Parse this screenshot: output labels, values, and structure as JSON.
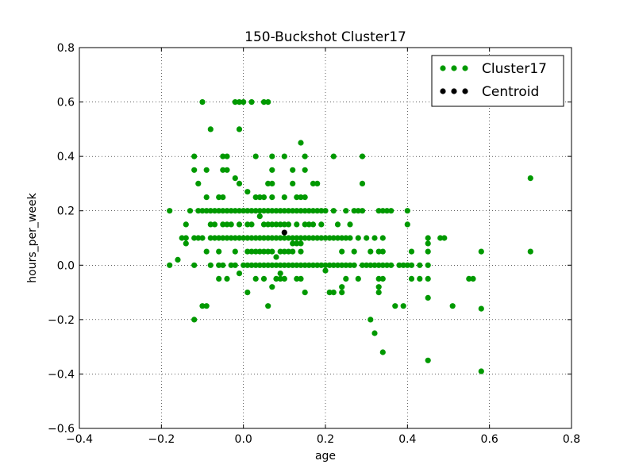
{
  "chart_data": {
    "type": "scatter",
    "title": "150-Buckshot Cluster17",
    "xlabel": "age",
    "ylabel": "hours_per_week",
    "xlim": [
      -0.4,
      0.8
    ],
    "ylim": [
      -0.6,
      0.8
    ],
    "xticks": [
      -0.4,
      -0.2,
      0.0,
      0.2,
      0.4,
      0.6,
      0.8
    ],
    "xtick_labels": [
      "−0.4",
      "−0.2",
      "0.0",
      "0.2",
      "0.4",
      "0.6",
      "0.8"
    ],
    "yticks": [
      -0.6,
      -0.4,
      -0.2,
      0.0,
      0.2,
      0.4,
      0.6,
      0.8
    ],
    "ytick_labels": [
      "−0.6",
      "−0.4",
      "−0.2",
      "0.0",
      "0.2",
      "0.4",
      "0.6",
      "0.8"
    ],
    "grid": true,
    "legend_position": "top-right",
    "series": [
      {
        "name": "Cluster17",
        "color": "#009900",
        "points": [
          [
            -0.18,
            0.2
          ],
          [
            -0.18,
            0.0
          ],
          [
            -0.16,
            0.02
          ],
          [
            -0.15,
            0.1
          ],
          [
            -0.14,
            0.1
          ],
          [
            -0.14,
            0.15
          ],
          [
            -0.14,
            0.08
          ],
          [
            -0.13,
            0.2
          ],
          [
            -0.12,
            0.0
          ],
          [
            -0.12,
            0.1
          ],
          [
            -0.12,
            0.35
          ],
          [
            -0.12,
            0.4
          ],
          [
            -0.12,
            -0.2
          ],
          [
            -0.11,
            0.2
          ],
          [
            -0.11,
            0.1
          ],
          [
            -0.11,
            0.3
          ],
          [
            -0.1,
            -0.15
          ],
          [
            -0.1,
            0.6
          ],
          [
            -0.1,
            0.2
          ],
          [
            -0.1,
            0.1
          ],
          [
            -0.09,
            -0.15
          ],
          [
            -0.09,
            0.05
          ],
          [
            -0.09,
            0.2
          ],
          [
            -0.09,
            0.25
          ],
          [
            -0.09,
            0.35
          ],
          [
            -0.08,
            0.1
          ],
          [
            -0.08,
            0.0
          ],
          [
            -0.08,
            0.15
          ],
          [
            -0.08,
            0.2
          ],
          [
            -0.08,
            0.5
          ],
          [
            -0.07,
            0.1
          ],
          [
            -0.07,
            0.2
          ],
          [
            -0.07,
            0.15
          ],
          [
            -0.06,
            0.25
          ],
          [
            -0.06,
            0.05
          ],
          [
            -0.06,
            -0.05
          ],
          [
            -0.06,
            0.0
          ],
          [
            -0.06,
            0.1
          ],
          [
            -0.06,
            0.2
          ],
          [
            -0.05,
            0.15
          ],
          [
            -0.05,
            0.25
          ],
          [
            -0.05,
            0.35
          ],
          [
            -0.05,
            0.4
          ],
          [
            -0.05,
            0.1
          ],
          [
            -0.05,
            0.2
          ],
          [
            -0.05,
            0.0
          ],
          [
            -0.04,
            0.4
          ],
          [
            -0.04,
            0.35
          ],
          [
            -0.04,
            0.2
          ],
          [
            -0.04,
            0.1
          ],
          [
            -0.04,
            -0.05
          ],
          [
            -0.04,
            0.15
          ],
          [
            -0.03,
            0.1
          ],
          [
            -0.03,
            0.2
          ],
          [
            -0.03,
            0.0
          ],
          [
            -0.03,
            0.15
          ],
          [
            -0.02,
            0.32
          ],
          [
            -0.02,
            0.6
          ],
          [
            -0.02,
            0.2
          ],
          [
            -0.02,
            0.1
          ],
          [
            -0.02,
            0.05
          ],
          [
            -0.02,
            0.0
          ],
          [
            -0.01,
            0.6
          ],
          [
            -0.01,
            0.5
          ],
          [
            -0.01,
            0.3
          ],
          [
            -0.01,
            0.2
          ],
          [
            -0.01,
            0.1
          ],
          [
            -0.01,
            0.15
          ],
          [
            -0.01,
            -0.03
          ],
          [
            0.0,
            0.6
          ],
          [
            0.0,
            0.2
          ],
          [
            0.0,
            0.1
          ],
          [
            0.0,
            0.0
          ],
          [
            0.01,
            0.27
          ],
          [
            0.01,
            0.2
          ],
          [
            0.01,
            0.15
          ],
          [
            0.01,
            0.1
          ],
          [
            0.01,
            0.05
          ],
          [
            0.01,
            0.0
          ],
          [
            0.01,
            -0.1
          ],
          [
            0.02,
            0.2
          ],
          [
            0.02,
            0.15
          ],
          [
            0.02,
            0.1
          ],
          [
            0.02,
            0.05
          ],
          [
            0.02,
            0.0
          ],
          [
            0.02,
            0.6
          ],
          [
            0.03,
            0.2
          ],
          [
            0.03,
            0.1
          ],
          [
            0.03,
            0.05
          ],
          [
            0.03,
            0.0
          ],
          [
            0.03,
            0.25
          ],
          [
            0.03,
            -0.05
          ],
          [
            0.03,
            0.4
          ],
          [
            0.04,
            0.2
          ],
          [
            0.04,
            0.1
          ],
          [
            0.04,
            0.05
          ],
          [
            0.04,
            0.0
          ],
          [
            0.04,
            0.18
          ],
          [
            0.04,
            0.25
          ],
          [
            0.05,
            0.6
          ],
          [
            0.05,
            0.2
          ],
          [
            0.05,
            0.15
          ],
          [
            0.05,
            0.1
          ],
          [
            0.05,
            0.05
          ],
          [
            0.05,
            0.0
          ],
          [
            0.05,
            -0.05
          ],
          [
            0.05,
            0.25
          ],
          [
            0.06,
            0.6
          ],
          [
            0.06,
            0.3
          ],
          [
            0.06,
            0.2
          ],
          [
            0.06,
            0.1
          ],
          [
            0.06,
            0.05
          ],
          [
            0.06,
            0.0
          ],
          [
            0.06,
            -0.15
          ],
          [
            0.06,
            0.15
          ],
          [
            0.07,
            0.4
          ],
          [
            0.07,
            0.3
          ],
          [
            0.07,
            0.25
          ],
          [
            0.07,
            0.2
          ],
          [
            0.07,
            0.15
          ],
          [
            0.07,
            0.1
          ],
          [
            0.07,
            0.05
          ],
          [
            0.07,
            0.0
          ],
          [
            0.07,
            -0.08
          ],
          [
            0.07,
            0.35
          ],
          [
            0.08,
            0.2
          ],
          [
            0.08,
            0.1
          ],
          [
            0.08,
            0.15
          ],
          [
            0.08,
            0.0
          ],
          [
            0.08,
            -0.05
          ],
          [
            0.08,
            0.03
          ],
          [
            0.09,
            0.2
          ],
          [
            0.09,
            0.15
          ],
          [
            0.09,
            0.1
          ],
          [
            0.09,
            0.0
          ],
          [
            0.09,
            -0.05
          ],
          [
            0.09,
            -0.03
          ],
          [
            0.09,
            0.05
          ],
          [
            0.1,
            0.4
          ],
          [
            0.1,
            0.2
          ],
          [
            0.1,
            0.15
          ],
          [
            0.1,
            0.1
          ],
          [
            0.1,
            0.05
          ],
          [
            0.1,
            0.0
          ],
          [
            0.1,
            0.25
          ],
          [
            0.1,
            -0.05
          ],
          [
            0.11,
            0.2
          ],
          [
            0.11,
            0.1
          ],
          [
            0.11,
            0.05
          ],
          [
            0.11,
            0.0
          ],
          [
            0.11,
            0.15
          ],
          [
            0.12,
            0.2
          ],
          [
            0.12,
            0.1
          ],
          [
            0.12,
            0.08
          ],
          [
            0.12,
            0.05
          ],
          [
            0.12,
            0.0
          ],
          [
            0.12,
            0.35
          ],
          [
            0.12,
            0.3
          ],
          [
            0.13,
            0.2
          ],
          [
            0.13,
            0.15
          ],
          [
            0.13,
            0.1
          ],
          [
            0.13,
            0.08
          ],
          [
            0.13,
            0.0
          ],
          [
            0.13,
            -0.05
          ],
          [
            0.13,
            0.25
          ],
          [
            0.14,
            0.45
          ],
          [
            0.14,
            0.2
          ],
          [
            0.14,
            0.1
          ],
          [
            0.14,
            0.08
          ],
          [
            0.14,
            0.05
          ],
          [
            0.14,
            0.0
          ],
          [
            0.14,
            -0.05
          ],
          [
            0.14,
            0.25
          ],
          [
            0.15,
            0.4
          ],
          [
            0.15,
            0.35
          ],
          [
            0.15,
            0.2
          ],
          [
            0.15,
            0.1
          ],
          [
            0.15,
            0.0
          ],
          [
            0.15,
            -0.1
          ],
          [
            0.15,
            0.25
          ],
          [
            0.15,
            0.15
          ],
          [
            0.16,
            0.2
          ],
          [
            0.16,
            0.1
          ],
          [
            0.16,
            0.0
          ],
          [
            0.16,
            0.15
          ],
          [
            0.17,
            0.3
          ],
          [
            0.17,
            0.2
          ],
          [
            0.17,
            0.1
          ],
          [
            0.17,
            0.0
          ],
          [
            0.17,
            0.15
          ],
          [
            0.18,
            0.3
          ],
          [
            0.18,
            0.2
          ],
          [
            0.18,
            0.1
          ],
          [
            0.18,
            0.0
          ],
          [
            0.19,
            0.2
          ],
          [
            0.19,
            0.1
          ],
          [
            0.19,
            0.0
          ],
          [
            0.19,
            0.15
          ],
          [
            0.2,
            0.2
          ],
          [
            0.2,
            0.1
          ],
          [
            0.2,
            0.0
          ],
          [
            0.2,
            -0.02
          ],
          [
            0.21,
            0.1
          ],
          [
            0.21,
            0.0
          ],
          [
            0.21,
            -0.1
          ],
          [
            0.22,
            0.4
          ],
          [
            0.22,
            0.2
          ],
          [
            0.22,
            0.1
          ],
          [
            0.22,
            0.0
          ],
          [
            0.22,
            -0.1
          ],
          [
            0.23,
            0.15
          ],
          [
            0.23,
            0.0
          ],
          [
            0.23,
            0.1
          ],
          [
            0.24,
            0.1
          ],
          [
            0.24,
            0.05
          ],
          [
            0.24,
            0.0
          ],
          [
            0.24,
            -0.1
          ],
          [
            0.24,
            -0.08
          ],
          [
            0.25,
            0.2
          ],
          [
            0.25,
            0.1
          ],
          [
            0.25,
            0.0
          ],
          [
            0.25,
            -0.05
          ],
          [
            0.26,
            0.15
          ],
          [
            0.26,
            0.1
          ],
          [
            0.26,
            0.0
          ],
          [
            0.27,
            0.2
          ],
          [
            0.27,
            0.05
          ],
          [
            0.27,
            0.0
          ],
          [
            0.28,
            0.2
          ],
          [
            0.28,
            0.1
          ],
          [
            0.28,
            -0.05
          ],
          [
            0.29,
            0.4
          ],
          [
            0.29,
            0.3
          ],
          [
            0.29,
            0.2
          ],
          [
            0.29,
            0.0
          ],
          [
            0.3,
            0.1
          ],
          [
            0.3,
            0.0
          ],
          [
            0.31,
            0.0
          ],
          [
            0.31,
            0.05
          ],
          [
            0.31,
            -0.2
          ],
          [
            0.32,
            0.1
          ],
          [
            0.32,
            0.0
          ],
          [
            0.32,
            -0.25
          ],
          [
            0.33,
            0.2
          ],
          [
            0.33,
            0.05
          ],
          [
            0.33,
            0.0
          ],
          [
            0.33,
            -0.05
          ],
          [
            0.33,
            -0.08
          ],
          [
            0.33,
            -0.1
          ],
          [
            0.34,
            0.1
          ],
          [
            0.34,
            0.2
          ],
          [
            0.34,
            0.05
          ],
          [
            0.34,
            0.0
          ],
          [
            0.34,
            -0.05
          ],
          [
            0.34,
            -0.32
          ],
          [
            0.35,
            0.2
          ],
          [
            0.35,
            0.0
          ],
          [
            0.36,
            0.2
          ],
          [
            0.36,
            0.0
          ],
          [
            0.37,
            -0.15
          ],
          [
            0.38,
            0.0
          ],
          [
            0.39,
            0.0
          ],
          [
            0.39,
            -0.15
          ],
          [
            0.4,
            0.2
          ],
          [
            0.4,
            0.15
          ],
          [
            0.4,
            0.0
          ],
          [
            0.41,
            0.0
          ],
          [
            0.41,
            -0.05
          ],
          [
            0.41,
            0.05
          ],
          [
            0.43,
            0.0
          ],
          [
            0.43,
            -0.05
          ],
          [
            0.45,
            0.1
          ],
          [
            0.45,
            0.08
          ],
          [
            0.45,
            0.0
          ],
          [
            0.45,
            -0.05
          ],
          [
            0.45,
            -0.12
          ],
          [
            0.45,
            -0.35
          ],
          [
            0.45,
            0.05
          ],
          [
            0.48,
            0.1
          ],
          [
            0.49,
            0.1
          ],
          [
            0.51,
            -0.15
          ],
          [
            0.55,
            -0.05
          ],
          [
            0.56,
            -0.05
          ],
          [
            0.58,
            0.05
          ],
          [
            0.58,
            -0.16
          ],
          [
            0.58,
            -0.39
          ],
          [
            0.7,
            0.32
          ],
          [
            0.7,
            0.05
          ]
        ]
      },
      {
        "name": "Centroid",
        "color": "#000000",
        "points": [
          [
            0.1,
            0.12
          ]
        ]
      }
    ]
  }
}
